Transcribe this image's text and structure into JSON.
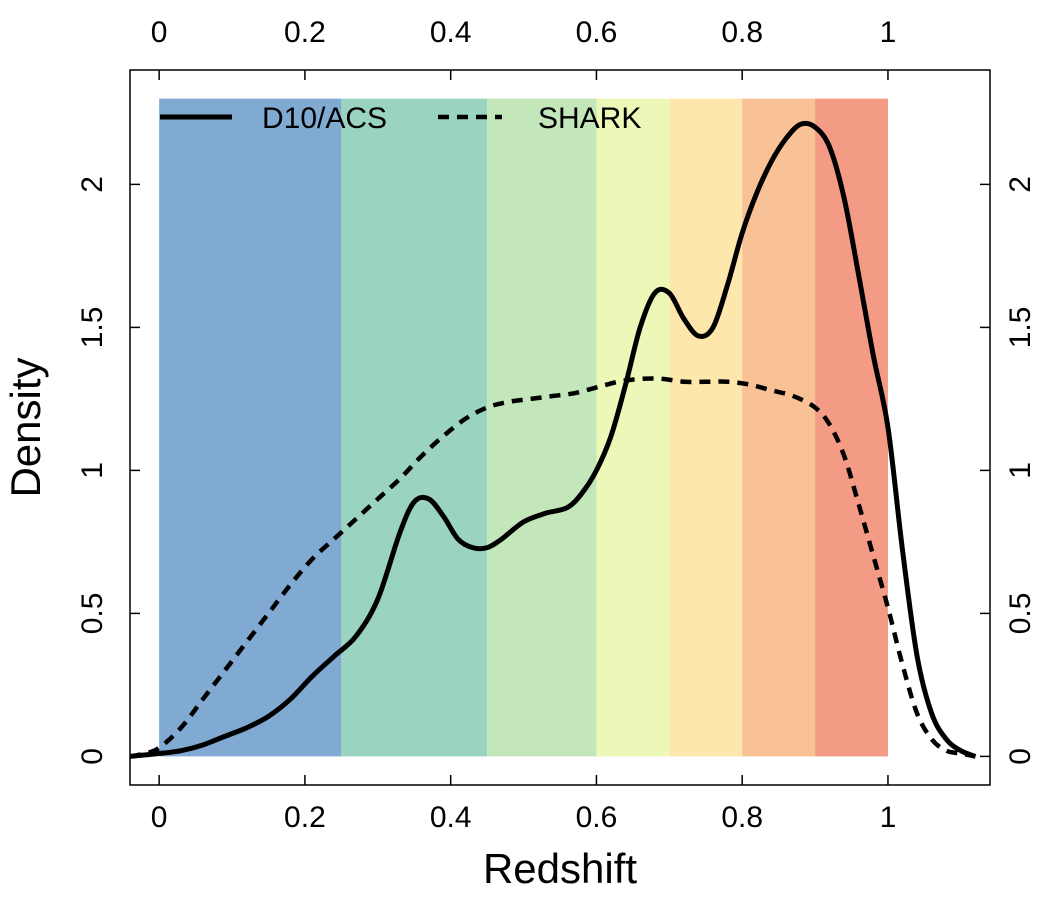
{
  "chart_data": {
    "type": "line",
    "xlabel": "Redshift",
    "ylabel": "Density",
    "xlim": [
      -0.04,
      1.14
    ],
    "ylim": [
      -0.1,
      2.4
    ],
    "x_ticks": [
      0,
      0.2,
      0.4,
      0.6,
      0.8,
      1
    ],
    "x_tick_labels": [
      "0",
      "0.2",
      "0.4",
      "0.6",
      "0.8",
      "1"
    ],
    "y_ticks": [
      0,
      0.5,
      1,
      1.5,
      2
    ],
    "y_tick_labels": [
      "0",
      "0.5",
      "1",
      "1.5",
      "2"
    ],
    "grid": false,
    "legend_position": "top-left",
    "bands": [
      {
        "x0": 0.0,
        "x1": 0.25,
        "ymax": 2.3,
        "color": "#80aad1"
      },
      {
        "x0": 0.25,
        "x1": 0.45,
        "ymax": 2.3,
        "color": "#9ad3bf"
      },
      {
        "x0": 0.45,
        "x1": 0.6,
        "ymax": 2.3,
        "color": "#c3e7bb"
      },
      {
        "x0": 0.6,
        "x1": 0.7,
        "ymax": 2.3,
        "color": "#ecf7b8"
      },
      {
        "x0": 0.7,
        "x1": 0.8,
        "ymax": 2.3,
        "color": "#fde7ad"
      },
      {
        "x0": 0.8,
        "x1": 0.9,
        "ymax": 2.3,
        "color": "#f9c196"
      },
      {
        "x0": 0.9,
        "x1": 1.0,
        "ymax": 2.3,
        "color": "#f39b85"
      }
    ],
    "series": [
      {
        "name": "D10/ACS",
        "style": "solid",
        "color": "#000000",
        "x": [
          -0.04,
          0.0,
          0.03,
          0.06,
          0.09,
          0.12,
          0.15,
          0.18,
          0.21,
          0.24,
          0.27,
          0.3,
          0.33,
          0.35,
          0.37,
          0.39,
          0.41,
          0.43,
          0.45,
          0.47,
          0.5,
          0.53,
          0.56,
          0.58,
          0.6,
          0.62,
          0.64,
          0.66,
          0.68,
          0.7,
          0.72,
          0.74,
          0.76,
          0.78,
          0.8,
          0.82,
          0.84,
          0.86,
          0.88,
          0.9,
          0.92,
          0.94,
          0.96,
          0.98,
          1.0,
          1.02,
          1.04,
          1.06,
          1.08,
          1.1,
          1.12
        ],
        "y": [
          0.0,
          0.01,
          0.02,
          0.04,
          0.07,
          0.1,
          0.14,
          0.2,
          0.28,
          0.35,
          0.42,
          0.55,
          0.78,
          0.89,
          0.9,
          0.84,
          0.76,
          0.73,
          0.73,
          0.76,
          0.82,
          0.85,
          0.87,
          0.92,
          1.0,
          1.12,
          1.3,
          1.5,
          1.62,
          1.62,
          1.53,
          1.47,
          1.5,
          1.65,
          1.83,
          1.97,
          2.08,
          2.16,
          2.21,
          2.2,
          2.13,
          1.95,
          1.68,
          1.4,
          1.15,
          0.72,
          0.35,
          0.15,
          0.06,
          0.02,
          0.0
        ]
      },
      {
        "name": "SHARK",
        "style": "dashed",
        "color": "#000000",
        "x": [
          -0.04,
          -0.02,
          0.0,
          0.03,
          0.06,
          0.09,
          0.12,
          0.15,
          0.18,
          0.21,
          0.24,
          0.27,
          0.3,
          0.33,
          0.36,
          0.39,
          0.42,
          0.45,
          0.48,
          0.51,
          0.54,
          0.57,
          0.6,
          0.63,
          0.66,
          0.69,
          0.72,
          0.75,
          0.78,
          0.81,
          0.84,
          0.87,
          0.9,
          0.92,
          0.94,
          0.96,
          0.98,
          1.0,
          1.02,
          1.04,
          1.06,
          1.08,
          1.1,
          1.12
        ],
        "y": [
          0.0,
          0.01,
          0.03,
          0.1,
          0.2,
          0.3,
          0.4,
          0.5,
          0.6,
          0.69,
          0.76,
          0.83,
          0.9,
          0.97,
          1.05,
          1.12,
          1.18,
          1.22,
          1.24,
          1.25,
          1.26,
          1.27,
          1.29,
          1.31,
          1.32,
          1.32,
          1.31,
          1.31,
          1.31,
          1.3,
          1.28,
          1.26,
          1.22,
          1.16,
          1.05,
          0.88,
          0.7,
          0.52,
          0.32,
          0.15,
          0.06,
          0.02,
          0.01,
          0.0
        ]
      }
    ]
  }
}
